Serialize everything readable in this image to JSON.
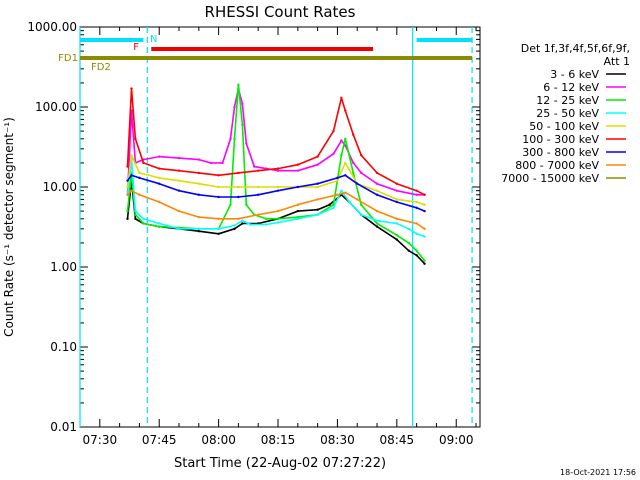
{
  "chart_data": {
    "type": "line",
    "title": "RHESSI Count Rates",
    "xlabel": "Start Time (22-Aug-02 07:27:22)",
    "ylabel": "Count Rate (s⁻¹ detector segment⁻¹)",
    "yscale": "log",
    "ylim": [
      0.01,
      1000
    ],
    "xlim": [
      "07:25",
      "09:06"
    ],
    "x_ticks": [
      "07:30",
      "07:45",
      "08:00",
      "08:15",
      "08:30",
      "08:45",
      "09:00"
    ],
    "y_ticks": [
      "0.01",
      "0.10",
      "1.00",
      "10.00",
      "100.00",
      "1000.00"
    ],
    "legend_header": [
      "Det 1f,3f,4f,5f,6f,9f,",
      "Att 1"
    ],
    "legend_position": "right",
    "footer": "18-Oct-2021 17:56",
    "flags": [
      {
        "label": "N",
        "color": "#00e0ff",
        "segments": [
          [
            "07:25",
            "07:41"
          ],
          [
            "08:50",
            "09:04"
          ]
        ]
      },
      {
        "label": "F",
        "color": "#ee0000",
        "segments": [
          [
            "07:43",
            "08:39"
          ]
        ]
      },
      {
        "label": "FD1",
        "color": "#8b8b00",
        "segments": [
          [
            "07:25",
            "09:04"
          ]
        ]
      },
      {
        "label": "FD2",
        "color": "#8b8b00",
        "segments": []
      }
    ],
    "vertical_lines": [
      {
        "x": "07:25",
        "style": "solid",
        "color": "#00e0ff"
      },
      {
        "x": "07:42",
        "style": "dashed",
        "color": "#00e0ff"
      },
      {
        "x": "08:49",
        "style": "solid",
        "color": "#00e0ff"
      },
      {
        "x": "09:04",
        "style": "dashed",
        "color": "#00e0ff"
      }
    ],
    "series": [
      {
        "name": "3 - 6 keV",
        "color": "#000000",
        "x": [
          "07:37",
          "07:38",
          "07:39",
          "07:41",
          "07:45",
          "07:50",
          "07:55",
          "08:00",
          "08:04",
          "08:06",
          "08:10",
          "08:15",
          "08:20",
          "08:25",
          "08:28",
          "08:31",
          "08:33",
          "08:36",
          "08:40",
          "08:45",
          "08:48",
          "08:50",
          "08:52"
        ],
        "values": [
          4,
          12,
          4,
          3.5,
          3.2,
          3.0,
          2.8,
          2.6,
          3.0,
          3.5,
          3.5,
          4.0,
          5.0,
          5.2,
          6,
          8,
          6.5,
          4.5,
          3.2,
          2.2,
          1.6,
          1.4,
          1.1
        ]
      },
      {
        "name": "6 - 12 keV",
        "color": "#ff00ff",
        "x": [
          "07:37",
          "07:38",
          "07:39",
          "07:41",
          "07:45",
          "07:50",
          "07:55",
          "07:58",
          "08:01",
          "08:03",
          "08:04",
          "08:05",
          "08:06",
          "08:07",
          "08:09",
          "08:12",
          "08:15",
          "08:20",
          "08:25",
          "08:29",
          "08:31",
          "08:32",
          "08:34",
          "08:36",
          "08:40",
          "08:45",
          "08:50",
          "08:52"
        ],
        "values": [
          8,
          90,
          20,
          22,
          24,
          23,
          22,
          20,
          20,
          40,
          100,
          170,
          110,
          35,
          18,
          17,
          16,
          16,
          19,
          26,
          38,
          33,
          20,
          15,
          11,
          9,
          8,
          8
        ]
      },
      {
        "name": "12 - 25 keV",
        "color": "#00ee00",
        "x": [
          "07:37",
          "07:38",
          "07:39",
          "07:41",
          "07:45",
          "07:50",
          "07:55",
          "08:00",
          "08:03",
          "08:04",
          "08:05",
          "08:06",
          "08:07",
          "08:09",
          "08:12",
          "08:15",
          "08:20",
          "08:25",
          "08:29",
          "08:31",
          "08:32",
          "08:34",
          "08:36",
          "08:40",
          "08:45",
          "08:48",
          "08:50",
          "08:52"
        ],
        "values": [
          5,
          15,
          4.5,
          3.5,
          3.2,
          3.1,
          3.0,
          3.0,
          6,
          40,
          190,
          60,
          6,
          4.5,
          4.0,
          4.0,
          4.2,
          4.5,
          6,
          25,
          40,
          15,
          6,
          3.5,
          2.5,
          2.0,
          1.6,
          1.2
        ]
      },
      {
        "name": "25 - 50 keV",
        "color": "#00ffff",
        "x": [
          "07:37",
          "07:38",
          "07:39",
          "07:41",
          "07:45",
          "07:50",
          "07:55",
          "08:00",
          "08:04",
          "08:06",
          "08:08",
          "08:12",
          "08:15",
          "08:20",
          "08:25",
          "08:29",
          "08:31",
          "08:33",
          "08:36",
          "08:40",
          "08:45",
          "08:48",
          "08:50",
          "08:52"
        ],
        "values": [
          8,
          22,
          5,
          4.0,
          3.5,
          3.0,
          3.0,
          3.0,
          3.3,
          3.8,
          3.4,
          3.4,
          3.6,
          4,
          4.5,
          5.5,
          9,
          6.5,
          4.5,
          3.8,
          3.5,
          3.0,
          2.6,
          2.4
        ]
      },
      {
        "name": "50 - 100 keV",
        "color": "#dddd00",
        "x": [
          "07:37",
          "07:38",
          "07:40",
          "07:45",
          "07:50",
          "07:55",
          "08:00",
          "08:05",
          "08:10",
          "08:15",
          "08:20",
          "08:25",
          "08:30",
          "08:32",
          "08:35",
          "08:40",
          "08:45",
          "08:50",
          "08:52"
        ],
        "values": [
          10,
          25,
          15,
          13,
          12,
          11,
          10,
          10,
          10,
          10,
          10,
          10,
          12,
          20,
          11,
          9,
          7,
          6.5,
          6
        ]
      },
      {
        "name": "100 - 300 keV",
        "color": "#ff0000",
        "x": [
          "07:37",
          "07:38",
          "07:39",
          "07:41",
          "07:45",
          "07:50",
          "07:55",
          "08:00",
          "08:05",
          "08:10",
          "08:15",
          "08:20",
          "08:25",
          "08:29",
          "08:31",
          "08:32",
          "08:34",
          "08:36",
          "08:40",
          "08:45",
          "08:50",
          "08:52"
        ],
        "values": [
          18,
          170,
          40,
          20,
          17,
          16,
          15,
          14,
          15,
          16,
          17,
          19,
          24,
          50,
          130,
          90,
          45,
          25,
          15,
          11,
          9,
          8
        ]
      },
      {
        "name": "300 - 800 keV",
        "color": "#0000ff",
        "x": [
          "07:37",
          "07:38",
          "07:40",
          "07:45",
          "07:50",
          "07:55",
          "08:00",
          "08:05",
          "08:10",
          "08:15",
          "08:20",
          "08:25",
          "08:30",
          "08:32",
          "08:35",
          "08:40",
          "08:45",
          "08:50",
          "08:52"
        ],
        "values": [
          12,
          14,
          13,
          11,
          9,
          8,
          7.5,
          7.5,
          8,
          9,
          10,
          11,
          13,
          14,
          11,
          8,
          6.5,
          5.5,
          5
        ]
      },
      {
        "name": "800 - 7000 keV",
        "color": "#ff8800",
        "x": [
          "07:37",
          "07:38",
          "07:40",
          "07:45",
          "07:50",
          "07:55",
          "08:00",
          "08:05",
          "08:10",
          "08:15",
          "08:20",
          "08:25",
          "08:30",
          "08:32",
          "08:35",
          "08:40",
          "08:45",
          "08:50",
          "08:52"
        ],
        "values": [
          8,
          9,
          8,
          6.5,
          5,
          4.2,
          4.0,
          4.0,
          4.5,
          5,
          6,
          7,
          8,
          8.5,
          7,
          5,
          4,
          3.5,
          3
        ]
      },
      {
        "name": "7000 - 15000 keV",
        "color": "#8b8b00",
        "x": [],
        "values": []
      }
    ]
  }
}
